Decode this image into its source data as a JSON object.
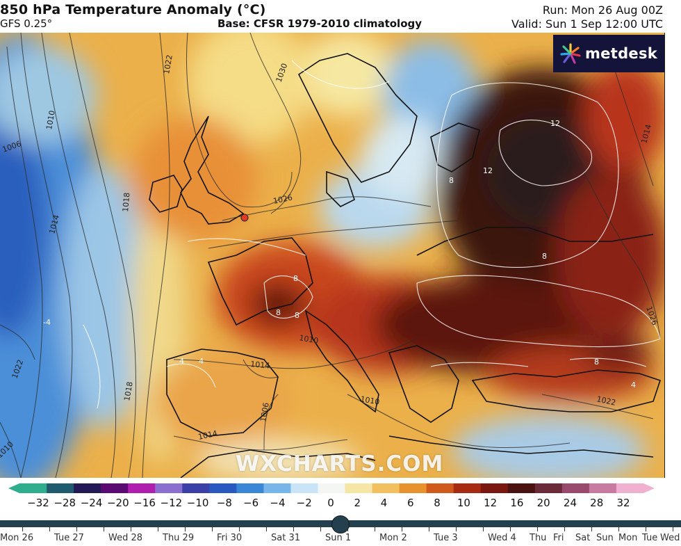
{
  "header": {
    "title": "850 hPa Temperature Anomaly (°C)",
    "model": "GFS 0.25°",
    "base": "Base: CFSR 1979-2010 climatology",
    "run": "Run: Mon 26 Aug 00Z",
    "valid": "Valid: Sun 1 Sep 12:00 UTC"
  },
  "brand": {
    "name": "metdesk",
    "watermark": "WXCHARTS.COM"
  },
  "map_labels": {
    "isobars": [
      "1030",
      "1026",
      "1022",
      "1018",
      "1014",
      "1010",
      "1006",
      "1022",
      "1018",
      "1014",
      "1010",
      "1014",
      "1014",
      "1026",
      "1010",
      "1022",
      "1006",
      "1010",
      "1014"
    ],
    "anomaly": [
      "12",
      "12",
      "8",
      "8",
      "8",
      "8",
      "8",
      "8",
      "4",
      "4",
      "4",
      "-4"
    ]
  },
  "colorbar": {
    "labels": [
      "−32",
      "−28",
      "−24",
      "−20",
      "−16",
      "−12",
      "−10",
      "−8",
      "−6",
      "−4",
      "−2",
      "0",
      "2",
      "4",
      "6",
      "8",
      "10",
      "12",
      "16",
      "20",
      "24",
      "28",
      "32"
    ],
    "colors": [
      "#2fae8e",
      "#1f5a6e",
      "#231a55",
      "#5a0a70",
      "#b01eb0",
      "#8a6fd0",
      "#3b3fa8",
      "#2858c0",
      "#3c86d8",
      "#78b6ea",
      "#c8e4f6",
      "#f3f6f2",
      "#f6e6a6",
      "#f3c060",
      "#e8922e",
      "#cf5a1c",
      "#a82a12",
      "#7a1810",
      "#4a1210",
      "#6b2a3a",
      "#9a4a6c",
      "#c87aa0",
      "#f0b0d0"
    ]
  },
  "timeline": {
    "days": [
      "Mon 26",
      "Tue 27",
      "Wed 28",
      "Thu 29",
      "Fri 30",
      "Sat 31",
      "Sun 1",
      "Mon 2",
      "Tue 3",
      "Wed 4",
      "Thu",
      "Fri",
      "Sat",
      "Sun",
      "Mon",
      "Tue",
      "Wed"
    ],
    "current_index": 6
  },
  "colors": {
    "track": "#243f4d",
    "logo_bg": "#14143a"
  }
}
